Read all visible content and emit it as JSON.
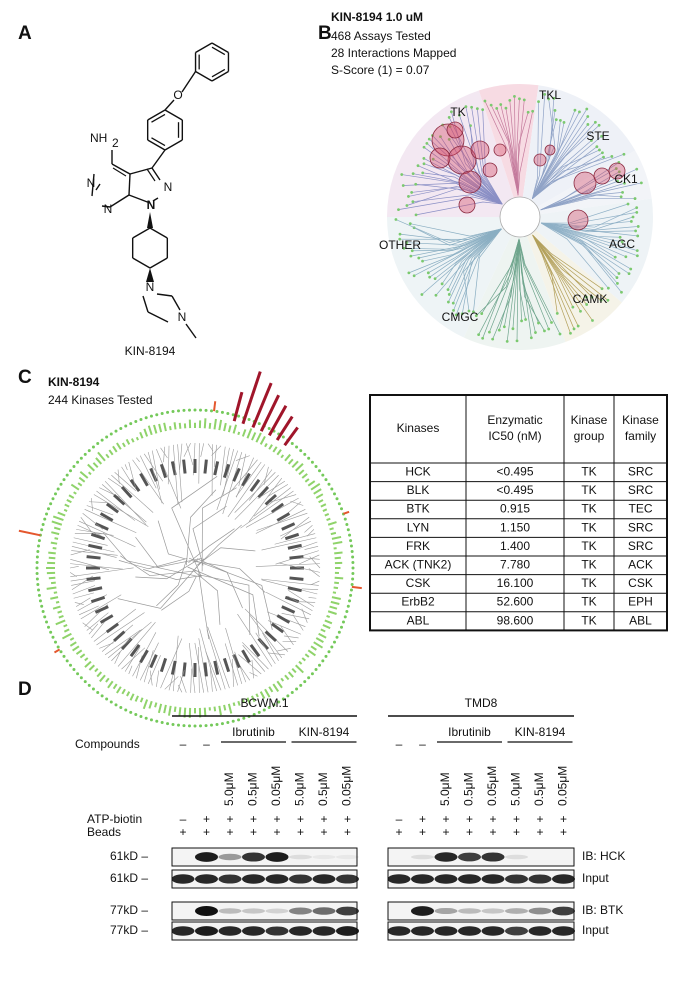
{
  "panels": {
    "a": {
      "label": "A",
      "caption": "KIN-8194",
      "atoms": [
        "O",
        "NH",
        "2",
        "N",
        "N",
        "N",
        "N",
        "N",
        "N"
      ]
    },
    "b": {
      "label": "B",
      "title": "KIN-8194 1.0 uM",
      "lines": [
        "468 Assays Tested",
        "28 Interactions Mapped",
        "S-Score (1) = 0.07"
      ],
      "groups": [
        "TK",
        "TKL",
        "STE",
        "CK1",
        "AGC",
        "CAMK",
        "CMGC",
        "OTHER"
      ]
    },
    "c": {
      "label": "C",
      "title": "KIN-8194",
      "subtitle": "244 Kinases Tested",
      "table": {
        "header": [
          [
            "Kinases"
          ],
          [
            "Enzymatic",
            "IC50 (nM)"
          ],
          [
            "Kinase",
            "group"
          ],
          [
            "Kinase",
            "family"
          ]
        ],
        "rows": [
          [
            "HCK",
            "<0.495",
            "TK",
            "SRC"
          ],
          [
            "BLK",
            "<0.495",
            "TK",
            "SRC"
          ],
          [
            "BTK",
            "0.915",
            "TK",
            "TEC"
          ],
          [
            "LYN",
            "1.150",
            "TK",
            "SRC"
          ],
          [
            "FRK",
            "1.400",
            "TK",
            "SRC"
          ],
          [
            "ACK (TNK2)",
            "7.780",
            "TK",
            "ACK"
          ],
          [
            "CSK",
            "16.100",
            "TK",
            "CSK"
          ],
          [
            "ErbB2",
            "52.600",
            "TK",
            "EPH"
          ],
          [
            "ABL",
            "98.600",
            "TK",
            "ABL"
          ]
        ]
      }
    },
    "d": {
      "label": "D",
      "cell_lines": [
        "BCWM.1",
        "TMD8"
      ],
      "compounds": "Compounds",
      "none": "–",
      "drugs": [
        "Ibrutinib",
        "KIN-8194"
      ],
      "doses": [
        "5.0μM",
        "0.5μM",
        "0.05μM"
      ],
      "rows": [
        {
          "label": "ATP-biotin",
          "signs": [
            [
              "–",
              "+",
              "+",
              "+",
              "+",
              "+",
              "+",
              "+"
            ],
            [
              "–",
              "+",
              "+",
              "+",
              "+",
              "+",
              "+",
              "+"
            ]
          ]
        },
        {
          "label": "Beads",
          "signs": [
            [
              "+",
              "+",
              "+",
              "+",
              "+",
              "+",
              "+",
              "+"
            ],
            [
              "+",
              "+",
              "+",
              "+",
              "+",
              "+",
              "+",
              "+"
            ]
          ]
        }
      ],
      "blots": [
        {
          "size": "61kD –",
          "label": "IB: HCK"
        },
        {
          "size": "61kD –",
          "label": "Input"
        },
        {
          "size": "77kD –",
          "label": "IB: BTK"
        },
        {
          "size": "77kD –",
          "label": "Input"
        }
      ]
    }
  }
}
